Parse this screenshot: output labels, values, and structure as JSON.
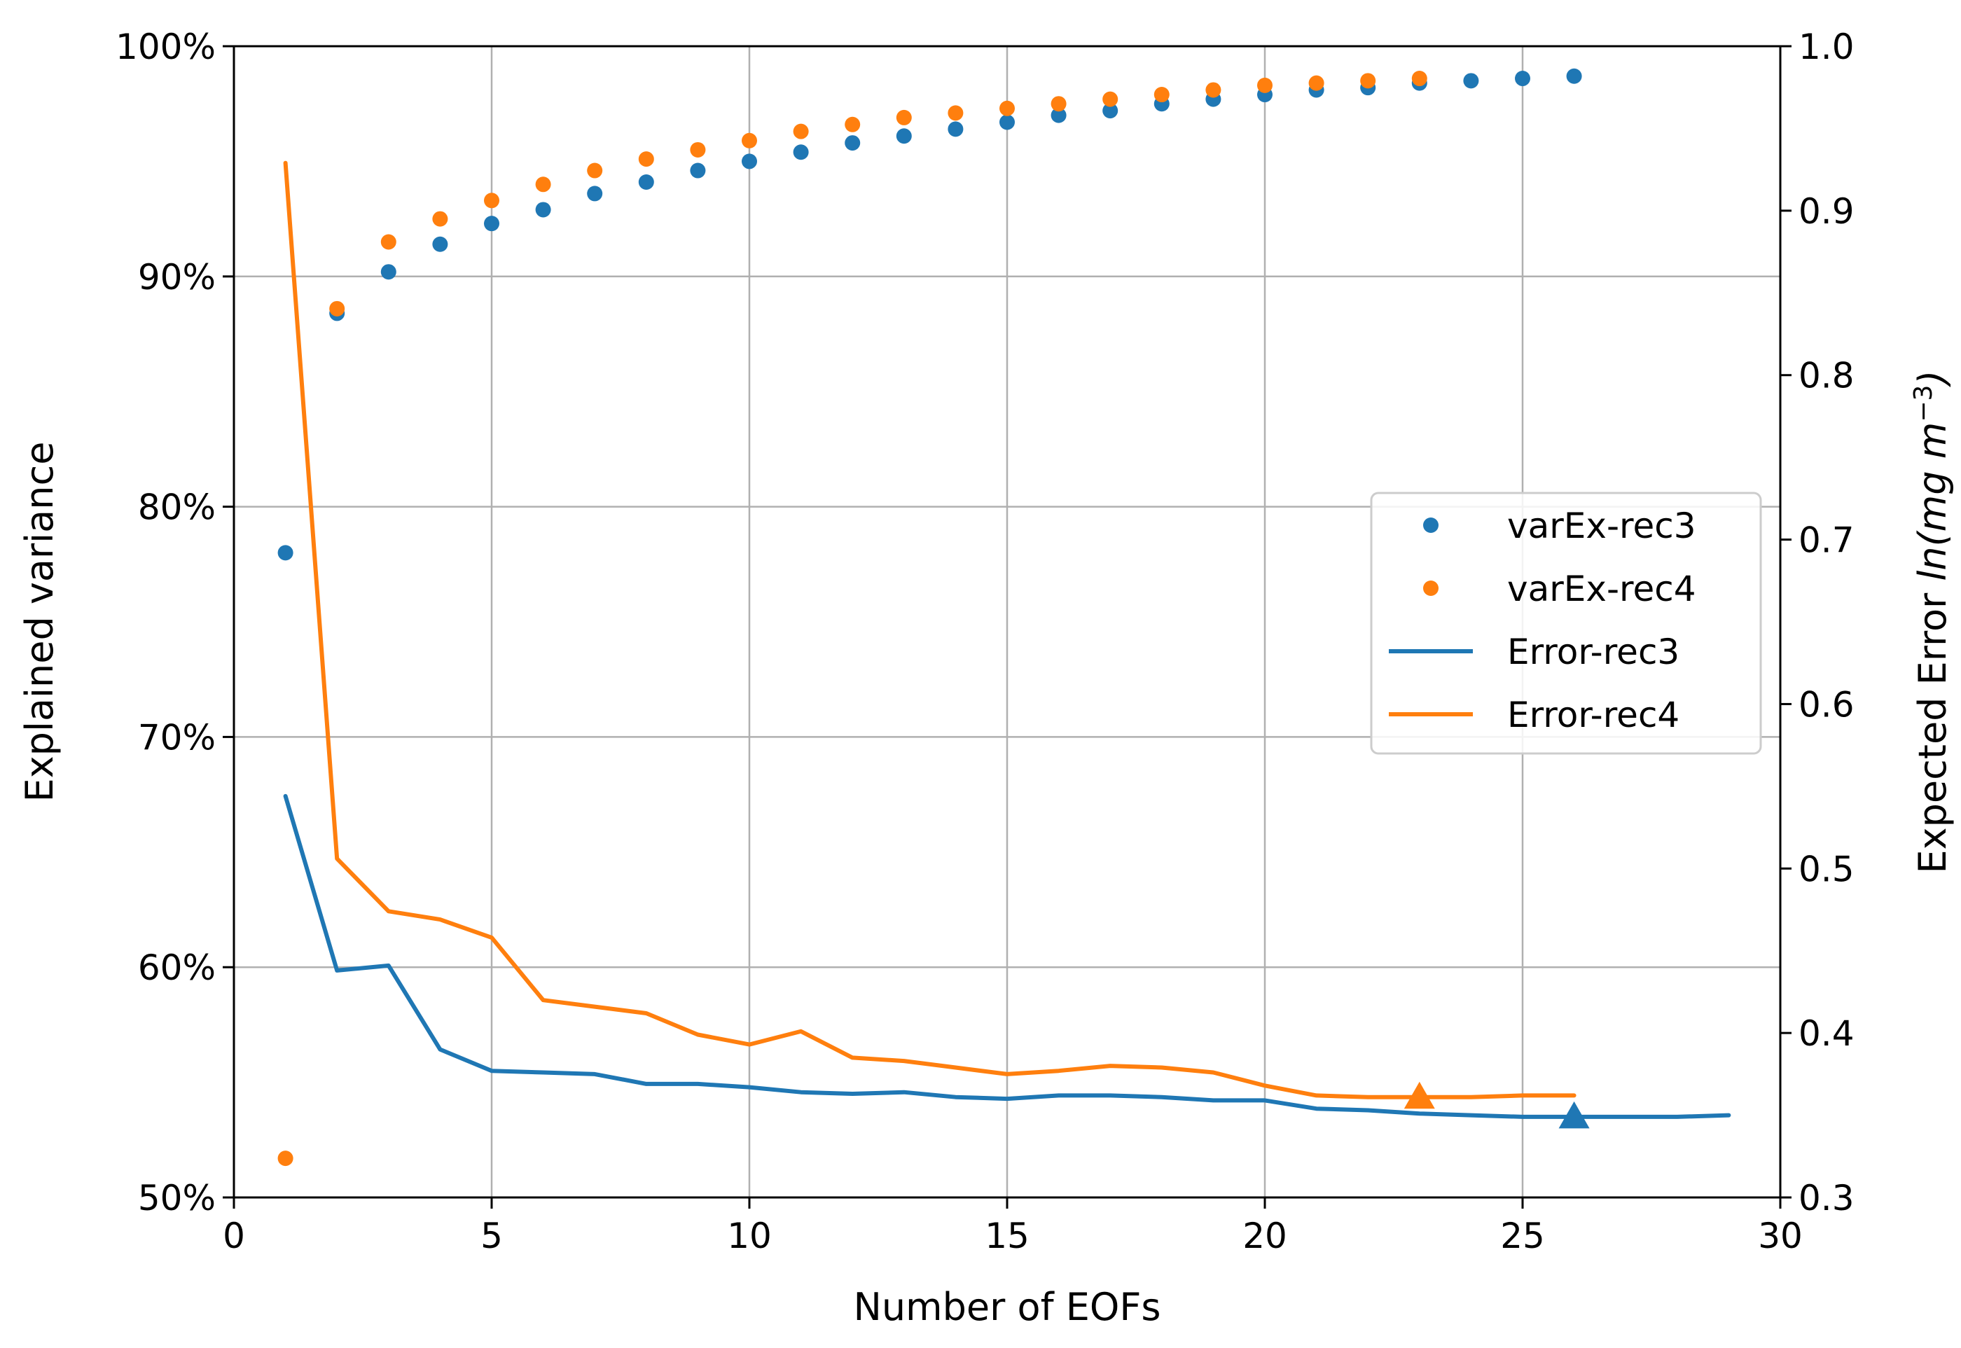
{
  "chart_data": {
    "type": "line",
    "xlabel": "Number of EOFs",
    "ylabel_left": "Explained variance",
    "ylabel_right_prefix": "Expected Error ",
    "ylabel_right_math": "ln(mg m",
    "ylabel_right_exp": "−3",
    "ylabel_right_close": ")",
    "xlim": [
      0,
      30
    ],
    "ylim_left": [
      50,
      100
    ],
    "ylim_right": [
      0.3,
      1.0
    ],
    "grid": true,
    "legend_position": "center-right",
    "x_ticks": [
      0,
      5,
      10,
      15,
      20,
      25,
      30
    ],
    "x_tick_labels": [
      "0",
      "5",
      "10",
      "15",
      "20",
      "25",
      "30"
    ],
    "y_left_ticks": [
      50,
      60,
      70,
      80,
      90,
      100
    ],
    "y_left_tick_labels": [
      "50%",
      "60%",
      "70%",
      "80%",
      "90%",
      "100%"
    ],
    "y_right_ticks": [
      0.3,
      0.4,
      0.5,
      0.6,
      0.7,
      0.8,
      0.9,
      1.0
    ],
    "y_right_tick_labels": [
      "0.3",
      "0.4",
      "0.5",
      "0.6",
      "0.7",
      "0.8",
      "0.9",
      "1.0"
    ],
    "series": [
      {
        "name": "varEx-rec3",
        "kind": "scatter",
        "axis": "left",
        "color": "#1f77b4",
        "x": [
          1,
          2,
          3,
          4,
          5,
          6,
          7,
          8,
          9,
          10,
          11,
          12,
          13,
          14,
          15,
          16,
          17,
          18,
          19,
          20,
          21,
          22,
          23,
          24,
          25,
          26
        ],
        "values": [
          78.0,
          88.4,
          90.2,
          91.4,
          92.3,
          92.9,
          93.6,
          94.1,
          94.6,
          95.0,
          95.4,
          95.8,
          96.1,
          96.4,
          96.7,
          97.0,
          97.2,
          97.5,
          97.7,
          97.9,
          98.1,
          98.2,
          98.4,
          98.5,
          98.6,
          98.7
        ]
      },
      {
        "name": "varEx-rec4",
        "kind": "scatter",
        "axis": "left",
        "color": "#ff7f0e",
        "x": [
          1,
          2,
          3,
          4,
          5,
          6,
          7,
          8,
          9,
          10,
          11,
          12,
          13,
          14,
          15,
          16,
          17,
          18,
          19,
          20,
          21,
          22,
          23
        ],
        "values": [
          51.7,
          88.6,
          91.5,
          92.5,
          93.3,
          94.0,
          94.6,
          95.1,
          95.5,
          95.9,
          96.3,
          96.6,
          96.9,
          97.1,
          97.3,
          97.5,
          97.7,
          97.9,
          98.1,
          98.3,
          98.4,
          98.5,
          98.6
        ]
      },
      {
        "name": "Error-rec3",
        "kind": "line",
        "axis": "right",
        "color": "#1f77b4",
        "x": [
          1,
          2,
          3,
          4,
          5,
          6,
          7,
          8,
          9,
          10,
          11,
          12,
          13,
          14,
          15,
          16,
          17,
          18,
          19,
          20,
          21,
          22,
          23,
          24,
          25,
          26,
          27,
          28,
          29
        ],
        "values": [
          0.544,
          0.438,
          0.441,
          0.39,
          0.377,
          0.376,
          0.375,
          0.369,
          0.369,
          0.367,
          0.364,
          0.363,
          0.364,
          0.361,
          0.36,
          0.362,
          0.362,
          0.361,
          0.359,
          0.359,
          0.354,
          0.353,
          0.351,
          0.35,
          0.349,
          0.349,
          0.349,
          0.349,
          0.35
        ],
        "marker": {
          "x": 26,
          "value": 0.349,
          "shape": "triangle"
        }
      },
      {
        "name": "Error-rec4",
        "kind": "line",
        "axis": "right",
        "color": "#ff7f0e",
        "x": [
          1,
          2,
          3,
          4,
          5,
          6,
          7,
          8,
          9,
          10,
          11,
          12,
          13,
          14,
          15,
          16,
          17,
          18,
          19,
          20,
          21,
          22,
          23,
          24,
          25,
          26
        ],
        "values": [
          0.929,
          0.506,
          0.474,
          0.469,
          0.458,
          0.42,
          0.416,
          0.412,
          0.399,
          0.393,
          0.401,
          0.385,
          0.383,
          0.379,
          0.375,
          0.377,
          0.38,
          0.379,
          0.376,
          0.368,
          0.362,
          0.361,
          0.361,
          0.361,
          0.362,
          0.362
        ],
        "marker": {
          "x": 23,
          "value": 0.361,
          "shape": "triangle"
        }
      }
    ]
  }
}
